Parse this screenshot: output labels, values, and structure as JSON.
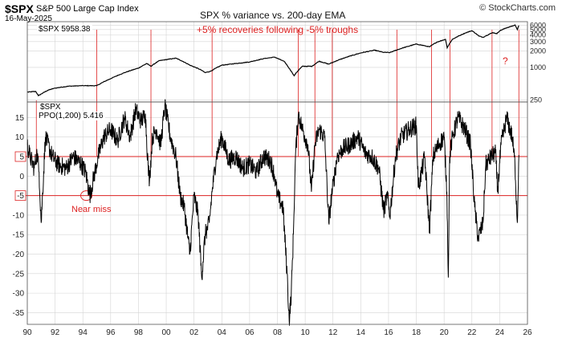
{
  "header": {
    "ticker": "$SPX",
    "name": "S&P 500 Large Cap Index",
    "date": "16-May-2025",
    "watermark": "© StockCharts.com"
  },
  "annotations": {
    "title": "SPX % variance vs. 200-day EMA",
    "subtitle": "+5% recoveries following -5% troughs",
    "question_mark": "?",
    "near_miss": "Near miss"
  },
  "colors": {
    "line": "#000000",
    "annotation": "#dd2222",
    "grid": "#d4d4d4",
    "axis_text": "#222222"
  },
  "chart_data": [
    {
      "type": "line",
      "panel": "price",
      "legend": "$SPX 5958.38",
      "log_scale": true,
      "y_ticks": [
        250,
        1000,
        2000,
        3000,
        4000,
        5000,
        6000
      ],
      "ylim": [
        230,
        7000
      ],
      "xlim": [
        1990,
        2026
      ],
      "series": [
        {
          "name": "$SPX",
          "x": [
            1990.0,
            1990.6,
            1990.8,
            1991.5,
            1992.0,
            1993.0,
            1994.0,
            1995.0,
            1996.0,
            1997.0,
            1998.0,
            1998.6,
            1998.9,
            1999.5,
            2000.2,
            2000.7,
            2001.7,
            2002.5,
            2002.8,
            2003.2,
            2004.0,
            2005.0,
            2006.0,
            2007.0,
            2007.8,
            2008.5,
            2008.8,
            2009.2,
            2009.8,
            2010.5,
            2011.0,
            2011.7,
            2012.5,
            2013.0,
            2014.0,
            2015.0,
            2015.6,
            2016.1,
            2017.0,
            2018.0,
            2018.95,
            2019.5,
            2020.1,
            2020.22,
            2020.6,
            2021.0,
            2021.5,
            2022.0,
            2022.5,
            2022.8,
            2023.5,
            2023.8,
            2024.0,
            2024.5,
            2025.0,
            2025.1,
            2025.27,
            2025.38
          ],
          "values": [
            350,
            360,
            300,
            380,
            415,
            450,
            460,
            460,
            620,
            800,
            970,
            1180,
            1050,
            1330,
            1420,
            1480,
            1100,
            900,
            800,
            850,
            1100,
            1180,
            1260,
            1450,
            1550,
            1280,
            1000,
            700,
            1050,
            1050,
            1300,
            1150,
            1400,
            1550,
            1850,
            2080,
            1900,
            1880,
            2280,
            2700,
            2400,
            2950,
            3300,
            2300,
            3300,
            3750,
            4300,
            4770,
            3800,
            3600,
            4400,
            4200,
            4750,
            5400,
            5900,
            6100,
            5000,
            5958
          ]
        }
      ]
    },
    {
      "type": "line",
      "panel": "ppo",
      "legend": "PPO(1,200) 5.416",
      "ylabel": "$SPX",
      "y_ticks": [
        15,
        10,
        5,
        0,
        -5,
        -10,
        -15,
        -20,
        -25,
        -30,
        -35
      ],
      "ylim": [
        -38,
        19
      ],
      "xlim": [
        1990,
        2026
      ],
      "x_ticks": [
        "90",
        "92",
        "94",
        "96",
        "98",
        "00",
        "02",
        "04",
        "06",
        "08",
        "10",
        "12",
        "14",
        "16",
        "18",
        "20",
        "22",
        "24",
        "26"
      ],
      "reference_lines": [
        5,
        -5
      ],
      "series": [
        {
          "name": "PPO(1,200)",
          "x": [
            1990.0,
            1990.2,
            1990.5,
            1990.7,
            1990.85,
            1991.0,
            1991.3,
            1991.8,
            1992.2,
            1992.8,
            1993.3,
            1993.9,
            1994.2,
            1994.5,
            1994.8,
            1995.1,
            1995.5,
            1996.0,
            1996.5,
            1997.0,
            1997.4,
            1997.8,
            1998.2,
            1998.5,
            1998.7,
            1998.8,
            1999.0,
            1999.3,
            1999.6,
            1999.9,
            2000.3,
            2000.7,
            2001.0,
            2001.3,
            2001.7,
            2002.0,
            2002.3,
            2002.55,
            2002.8,
            2003.1,
            2003.3,
            2003.6,
            2004.0,
            2004.5,
            2005.0,
            2005.5,
            2006.0,
            2006.5,
            2007.0,
            2007.5,
            2007.8,
            2008.0,
            2008.4,
            2008.7,
            2008.85,
            2009.0,
            2009.15,
            2009.3,
            2009.5,
            2009.8,
            2010.2,
            2010.45,
            2010.7,
            2011.0,
            2011.4,
            2011.7,
            2011.9,
            2012.3,
            2012.7,
            2013.2,
            2013.8,
            2014.3,
            2014.8,
            2015.3,
            2015.65,
            2015.9,
            2016.1,
            2016.5,
            2016.9,
            2017.5,
            2018.0,
            2018.15,
            2018.6,
            2018.95,
            2019.2,
            2019.6,
            2020.0,
            2020.2,
            2020.3,
            2020.4,
            2020.6,
            2021.0,
            2021.5,
            2021.9,
            2022.2,
            2022.45,
            2022.8,
            2023.0,
            2023.4,
            2023.7,
            2023.85,
            2024.1,
            2024.5,
            2024.9,
            2025.1,
            2025.27,
            2025.38
          ],
          "values": [
            8,
            5,
            2,
            6,
            1,
            -12,
            10,
            5,
            3,
            2,
            5,
            3,
            1,
            -5,
            0,
            5,
            10,
            12,
            9,
            15,
            10,
            17,
            14,
            16,
            2,
            -1,
            10,
            12,
            8,
            18,
            10,
            5,
            -5,
            -8,
            -20,
            -5,
            -10,
            -26,
            -15,
            -12,
            -4,
            5,
            10,
            4,
            5,
            2,
            3,
            1,
            5,
            4,
            0,
            -5,
            -8,
            -25,
            -37,
            -30,
            -15,
            5,
            16,
            12,
            8,
            -4,
            8,
            12,
            10,
            -12,
            -5,
            5,
            7,
            8,
            10,
            6,
            5,
            2,
            -9,
            -5,
            -10,
            5,
            10,
            12,
            13,
            -3,
            5,
            -14,
            5,
            8,
            10,
            -4,
            -26,
            5,
            10,
            15,
            12,
            8,
            -8,
            -16,
            -12,
            3,
            5,
            6,
            -4,
            8,
            15,
            10,
            3,
            -12,
            5.4
          ]
        }
      ],
      "markers": [
        {
          "label": "Near miss",
          "x": 1994.25,
          "y": -5
        }
      ]
    }
  ]
}
